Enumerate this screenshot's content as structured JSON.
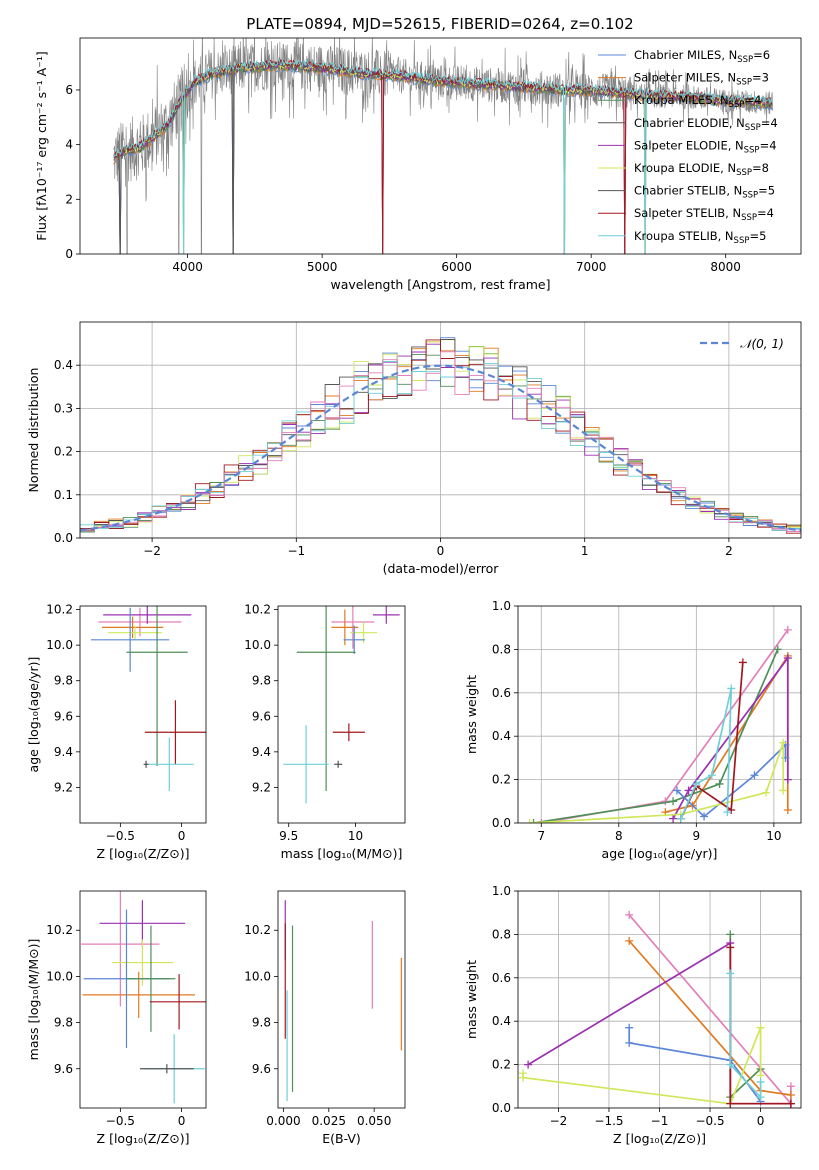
{
  "figure": {
    "title": "PLATE=0894, MJD=52615, FIBERID=0264, z=0.102"
  },
  "colors": {
    "c0": "#5b86d6",
    "c1": "#e07a22",
    "c2": "#4f8f58",
    "c3": "#9b30b0",
    "c4": "#cfe85a",
    "c5": "#555555",
    "c6": "#a0181e",
    "c7": "#6fcfd8",
    "c8": "#e37fb8",
    "gray": "#808080"
  },
  "chart_data": [
    {
      "id": "spectrum",
      "type": "line",
      "xlabel": "wavelength [Angstrom, rest frame]",
      "ylabel": "Flux [fλ10⁻¹⁷ erg cm⁻² s⁻¹ A⁻¹]",
      "xlim": [
        3200,
        8560
      ],
      "ylim": [
        0,
        7.9
      ],
      "xticks": [
        4000,
        5000,
        6000,
        7000,
        8000
      ],
      "yticks": [
        0,
        2,
        4,
        6
      ],
      "grid": false,
      "legend_position": "upper right",
      "legend": [
        {
          "label": "Chabrier MILES, N",
          "sub": "SSP",
          "n": "=6",
          "color": "c0"
        },
        {
          "label": "Salpeter MILES, N",
          "sub": "SSP",
          "n": "=3",
          "color": "c1"
        },
        {
          "label": "Kroupa MILES, N",
          "sub": "SSP",
          "n": "=4",
          "color": "c2"
        },
        {
          "label": "Chabrier ELODIE, N",
          "sub": "SSP",
          "n": "=4",
          "color": "c5"
        },
        {
          "label": "Salpeter ELODIE, N",
          "sub": "SSP",
          "n": "=4",
          "color": "c3"
        },
        {
          "label": "Kroupa ELODIE, N",
          "sub": "SSP",
          "n": "=8",
          "color": "c4"
        },
        {
          "label": "Chabrier STELIB, N",
          "sub": "SSP",
          "n": "=5",
          "color": "c5"
        },
        {
          "label": "Salpeter STELIB, N",
          "sub": "SSP",
          "n": "=4",
          "color": "c6"
        },
        {
          "label": "Kroupa STELIB, N",
          "sub": "SSP",
          "n": "=5",
          "color": "c7"
        }
      ],
      "continuum": [
        [
          3450,
          3.5
        ],
        [
          3550,
          3.8
        ],
        [
          3650,
          3.9
        ],
        [
          3750,
          4.3
        ],
        [
          3850,
          4.7
        ],
        [
          3950,
          5.6
        ],
        [
          4050,
          6.3
        ],
        [
          4200,
          6.6
        ],
        [
          4400,
          6.8
        ],
        [
          4700,
          6.9
        ],
        [
          5000,
          6.8
        ],
        [
          5300,
          6.6
        ],
        [
          5600,
          6.5
        ],
        [
          5900,
          6.3
        ],
        [
          6200,
          6.2
        ],
        [
          6500,
          6.1
        ],
        [
          6800,
          6.0
        ],
        [
          7100,
          5.95
        ],
        [
          7400,
          5.8
        ],
        [
          7700,
          5.75
        ],
        [
          8000,
          5.6
        ],
        [
          8200,
          5.55
        ],
        [
          8350,
          5.5
        ]
      ],
      "absorption_lines": [
        3500,
        3550,
        3934,
        3969,
        4102,
        4341,
        5450,
        6800,
        7250,
        7400
      ]
    },
    {
      "id": "residuals",
      "type": "histogram",
      "xlabel": "(data-model)/error",
      "ylabel": "Normed distribution",
      "xlim": [
        -2.5,
        2.5
      ],
      "ylim": [
        0,
        0.5
      ],
      "xticks": [
        -2,
        -1,
        0,
        1,
        2
      ],
      "yticks": [
        0,
        0.1,
        0.2,
        0.3,
        0.4
      ],
      "grid": true,
      "bins": {
        "start": -2.5,
        "width": 0.1,
        "count": 50
      },
      "curve_label": "𝒩(0, 1)",
      "curve_color": "c0"
    },
    {
      "id": "age-vs-metal",
      "type": "scatter",
      "xlabel": "Z [log₁₀(Z/Z⊙)]",
      "ylabel": "age  [log₁₀(age/yr)]",
      "xlim": [
        -0.83,
        0.2
      ],
      "ylim": [
        9.0,
        10.22
      ],
      "xticks": [
        -0.5,
        0.0
      ],
      "yticks": [
        9.2,
        9.4,
        9.6,
        9.8,
        10.0,
        10.2
      ],
      "points": [
        {
          "x": -0.34,
          "y": 10.13,
          "xerr": 0.34,
          "yerr": 0.08,
          "color": "c8"
        },
        {
          "x": -0.28,
          "y": 10.17,
          "xerr": 0.36,
          "yerr": 0.05,
          "color": "c3"
        },
        {
          "x": -0.4,
          "y": 10.1,
          "xerr": 0.25,
          "yerr": 0.06,
          "color": "c1"
        },
        {
          "x": -0.38,
          "y": 10.07,
          "xerr": 0.22,
          "yerr": 0.04,
          "color": "c4"
        },
        {
          "x": -0.42,
          "y": 10.03,
          "xerr": 0.32,
          "yerr": 0.18,
          "color": "c0"
        },
        {
          "x": -0.2,
          "y": 9.96,
          "xerr": 0.25,
          "yerr": 0.64,
          "color": "c2"
        },
        {
          "x": -0.05,
          "y": 9.51,
          "xerr": 0.25,
          "yerr": 0.18,
          "color": "c6"
        },
        {
          "x": -0.1,
          "y": 9.33,
          "xerr": 0.2,
          "yerr": 0.15,
          "color": "c7"
        },
        {
          "x": -0.29,
          "y": 9.33,
          "xerr": 0.02,
          "yerr": 0.02,
          "color": "c5"
        }
      ]
    },
    {
      "id": "age-vs-mass",
      "type": "scatter",
      "xlabel": "mass [log₁₀(M/M⊙)]",
      "ylabel": "",
      "xlim": [
        9.42,
        10.37
      ],
      "ylim": [
        9.0,
        10.22
      ],
      "xticks": [
        9.5,
        10.0
      ],
      "yticks": [
        9.2,
        9.4,
        9.6,
        9.8,
        10.0,
        10.2
      ],
      "points": [
        {
          "x": 9.98,
          "y": 10.13,
          "xerr": 0.16,
          "yerr": 0.15,
          "color": "c8"
        },
        {
          "x": 10.23,
          "y": 10.17,
          "xerr": 0.1,
          "yerr": 0.05,
          "color": "c3"
        },
        {
          "x": 9.92,
          "y": 10.1,
          "xerr": 0.1,
          "yerr": 0.1,
          "color": "c1"
        },
        {
          "x": 10.06,
          "y": 10.07,
          "xerr": 0.1,
          "yerr": 0.06,
          "color": "c4"
        },
        {
          "x": 9.99,
          "y": 10.03,
          "xerr": 0.08,
          "yerr": 0.08,
          "color": "c0"
        },
        {
          "x": 9.78,
          "y": 9.96,
          "xerr": 0.22,
          "yerr": 0.78,
          "color": "c2"
        },
        {
          "x": 9.95,
          "y": 9.51,
          "xerr": 0.12,
          "yerr": 0.05,
          "color": "c6"
        },
        {
          "x": 9.63,
          "y": 9.33,
          "xerr": 0.17,
          "yerr": 0.22,
          "color": "c7"
        },
        {
          "x": 9.87,
          "y": 9.33,
          "xerr": 0.03,
          "yerr": 0.02,
          "color": "c5"
        }
      ]
    },
    {
      "id": "weight-vs-age",
      "type": "line",
      "xlabel": "age  [log₁₀(age/yr)]",
      "ylabel": "mass weight",
      "xlim": [
        6.7,
        10.35
      ],
      "ylim": [
        0,
        1.0
      ],
      "xticks": [
        7,
        8,
        9,
        10
      ],
      "yticks": [
        0.0,
        0.2,
        0.4,
        0.6,
        0.8,
        1.0
      ],
      "grid": true,
      "series": [
        {
          "color": "c8",
          "points": [
            [
              7.0,
              0.0
            ],
            [
              8.6,
              0.1
            ],
            [
              10.18,
              0.89
            ]
          ]
        },
        {
          "color": "c1",
          "points": [
            [
              8.6,
              0.05
            ],
            [
              8.95,
              0.08
            ],
            [
              10.18,
              0.77
            ],
            [
              10.18,
              0.06
            ]
          ]
        },
        {
          "color": "c2",
          "points": [
            [
              6.9,
              0.0
            ],
            [
              8.7,
              0.1
            ],
            [
              9.3,
              0.18
            ],
            [
              10.05,
              0.8
            ]
          ]
        },
        {
          "color": "c3",
          "points": [
            [
              8.7,
              0.02
            ],
            [
              8.9,
              0.15
            ],
            [
              10.18,
              0.76
            ],
            [
              10.18,
              0.2
            ]
          ]
        },
        {
          "color": "c0",
          "points": [
            [
              8.75,
              0.15
            ],
            [
              9.1,
              0.03
            ],
            [
              9.75,
              0.22
            ],
            [
              10.15,
              0.36
            ],
            [
              10.15,
              0.3
            ]
          ]
        },
        {
          "color": "c4",
          "points": [
            [
              6.85,
              0.0
            ],
            [
              8.8,
              0.04
            ],
            [
              9.9,
              0.14
            ],
            [
              10.12,
              0.37
            ],
            [
              10.12,
              0.15
            ]
          ]
        },
        {
          "color": "c6",
          "points": [
            [
              8.8,
              0.02
            ],
            [
              9.0,
              0.17
            ],
            [
              9.45,
              0.06
            ],
            [
              9.6,
              0.74
            ]
          ]
        },
        {
          "color": "c7",
          "points": [
            [
              8.8,
              0.02
            ],
            [
              9.0,
              0.18
            ],
            [
              9.2,
              0.22
            ],
            [
              9.45,
              0.62
            ],
            [
              9.4,
              0.05
            ]
          ]
        }
      ]
    },
    {
      "id": "mass-vs-metal",
      "type": "scatter",
      "xlabel": "Z [log₁₀(Z/Z⊙)]",
      "ylabel": "mass [log₁₀(M/M⊙)]",
      "xlim": [
        -0.83,
        0.2
      ],
      "ylim": [
        9.43,
        10.37
      ],
      "xticks": [
        -0.5,
        0.0
      ],
      "yticks": [
        9.6,
        9.8,
        10.0,
        10.2
      ],
      "points": [
        {
          "x": -0.5,
          "y": 10.14,
          "xerr": 0.32,
          "yerr": 0.27,
          "color": "c8"
        },
        {
          "x": -0.32,
          "y": 10.23,
          "xerr": 0.35,
          "yerr": 0.1,
          "color": "c3"
        },
        {
          "x": -0.35,
          "y": 9.92,
          "xerr": 0.46,
          "yerr": 0.1,
          "color": "c1"
        },
        {
          "x": -0.32,
          "y": 10.06,
          "xerr": 0.25,
          "yerr": 0.1,
          "color": "c4"
        },
        {
          "x": -0.45,
          "y": 9.99,
          "xerr": 0.35,
          "yerr": 0.3,
          "color": "c0"
        },
        {
          "x": -0.25,
          "y": 9.99,
          "xerr": 0.2,
          "yerr": 0.23,
          "color": "c2"
        },
        {
          "x": -0.02,
          "y": 9.89,
          "xerr": 0.24,
          "yerr": 0.12,
          "color": "c6"
        },
        {
          "x": -0.06,
          "y": 9.6,
          "xerr": 0.25,
          "yerr": 0.15,
          "color": "c7"
        },
        {
          "x": -0.12,
          "y": 9.6,
          "xerr": 0.22,
          "yerr": 0.02,
          "color": "c5"
        }
      ]
    },
    {
      "id": "mass-vs-ebv",
      "type": "scatter",
      "xlabel": "E(B-V)",
      "ylabel": "",
      "xlim": [
        -0.003,
        0.067
      ],
      "ylim": [
        9.43,
        10.37
      ],
      "xticks": [
        0.0,
        0.025,
        0.05
      ],
      "xticklabels": [
        "0.000",
        "0.025",
        "0.050"
      ],
      "yticks": [
        9.6,
        9.8,
        10.0,
        10.2
      ],
      "points": [
        {
          "x": 0.049,
          "y": 10.05,
          "xerr": 0,
          "yerr": 0.19,
          "color": "c8"
        },
        {
          "x": 0.065,
          "y": 9.88,
          "xerr": 0,
          "yerr": 0.2,
          "color": "c1"
        },
        {
          "x": 0.001,
          "y": 10.2,
          "xerr": 0,
          "yerr": 0.13,
          "color": "c3"
        },
        {
          "x": 0.001,
          "y": 9.98,
          "xerr": 0,
          "yerr": 0.25,
          "color": "c6"
        },
        {
          "x": 0.002,
          "y": 9.7,
          "xerr": 0,
          "yerr": 0.24,
          "color": "c7"
        },
        {
          "x": 0.005,
          "y": 9.86,
          "xerr": 0,
          "yerr": 0.36,
          "color": "c2"
        }
      ]
    },
    {
      "id": "weight-vs-metal",
      "type": "line",
      "xlabel": "Z [log₁₀(Z/Z⊙)]",
      "ylabel": "mass weight",
      "xlim": [
        -2.4,
        0.4
      ],
      "ylim": [
        0,
        1.0
      ],
      "xticks": [
        -2.0,
        -1.5,
        -1.0,
        -0.5,
        0.0
      ],
      "yticks": [
        0.0,
        0.2,
        0.4,
        0.6,
        0.8,
        1.0
      ],
      "grid": true,
      "series": [
        {
          "color": "c8",
          "points": [
            [
              -1.3,
              0.89
            ],
            [
              0.3,
              0.02
            ],
            [
              0.3,
              0.1
            ]
          ]
        },
        {
          "color": "c1",
          "points": [
            [
              -1.3,
              0.77
            ],
            [
              0.0,
              0.08
            ],
            [
              0.3,
              0.06
            ]
          ]
        },
        {
          "color": "c2",
          "points": [
            [
              -0.3,
              0.8
            ],
            [
              -0.3,
              0.05
            ],
            [
              0.0,
              0.18
            ]
          ]
        },
        {
          "color": "c3",
          "points": [
            [
              -2.3,
              0.2
            ],
            [
              -0.3,
              0.76
            ],
            [
              -0.3,
              0.02
            ],
            [
              0.3,
              0.02
            ]
          ]
        },
        {
          "color": "c0",
          "points": [
            [
              -1.3,
              0.37
            ],
            [
              -1.3,
              0.3
            ],
            [
              -0.3,
              0.22
            ],
            [
              0.0,
              0.03
            ]
          ]
        },
        {
          "color": "c4",
          "points": [
            [
              -2.35,
              0.16
            ],
            [
              -2.35,
              0.14
            ],
            [
              -0.3,
              0.02
            ],
            [
              0.0,
              0.37
            ],
            [
              0.0,
              0.15
            ]
          ]
        },
        {
          "color": "c6",
          "points": [
            [
              -0.3,
              0.74
            ],
            [
              -0.3,
              0.02
            ],
            [
              0.3,
              0.02
            ]
          ]
        },
        {
          "color": "c7",
          "points": [
            [
              -0.3,
              0.62
            ],
            [
              -0.3,
              0.2
            ],
            [
              0.0,
              0.05
            ],
            [
              0.0,
              0.12
            ]
          ]
        }
      ]
    }
  ]
}
